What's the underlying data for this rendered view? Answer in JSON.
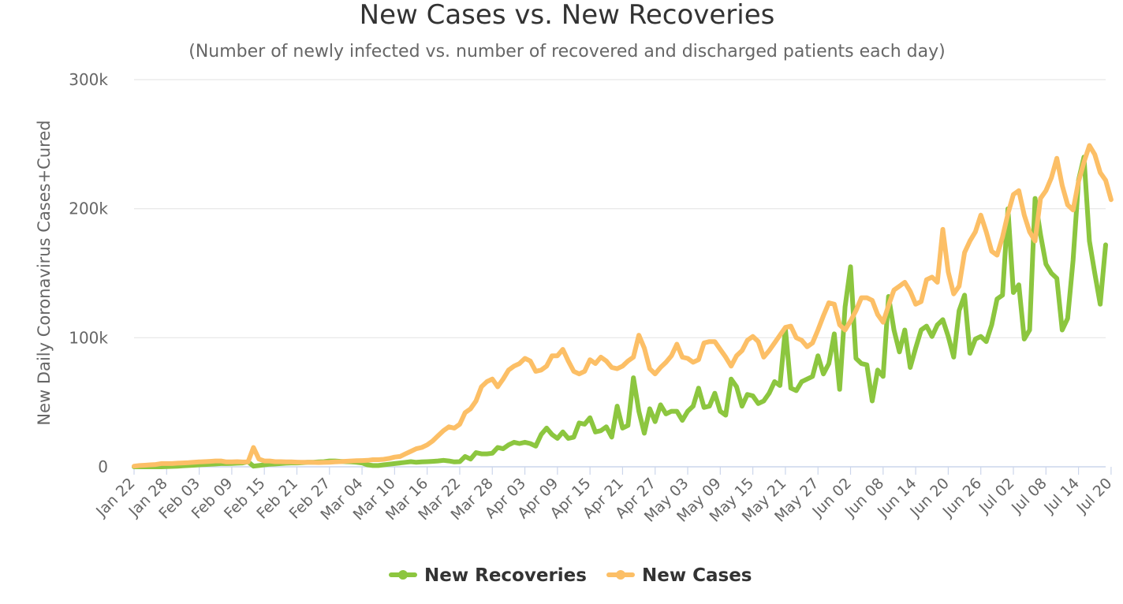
{
  "chart_data": {
    "type": "line",
    "title": "New Cases vs. New Recoveries",
    "subtitle": "(Number of newly infected vs. number of recovered and discharged patients each day)",
    "ylabel": "New Daily Coronavirus Cases+Cured",
    "ylim": [
      0,
      300000
    ],
    "yticks": [
      {
        "value": 0,
        "label": "0"
      },
      {
        "value": 100000,
        "label": "100k"
      },
      {
        "value": 200000,
        "label": "200k"
      },
      {
        "value": 300000,
        "label": "300k"
      }
    ],
    "grid": true,
    "legend_position": "bottom-center",
    "x_tick_labels": [
      "Jan 22",
      "Jan 28",
      "Feb 03",
      "Feb 09",
      "Feb 15",
      "Feb 21",
      "Feb 27",
      "Mar 04",
      "Mar 10",
      "Mar 16",
      "Mar 22",
      "Mar 28",
      "Apr 03",
      "Apr 09",
      "Apr 15",
      "Apr 21",
      "Apr 27",
      "May 03",
      "May 09",
      "May 15",
      "May 21",
      "May 27",
      "Jun 02",
      "Jun 08",
      "Jun 14",
      "Jun 20",
      "Jun 26",
      "Jul 02",
      "Jul 08",
      "Jul 14",
      "Jul 20"
    ],
    "tick_every_days": 6,
    "series": [
      {
        "name": "New Recoveries",
        "color": "#8cc63f",
        "values": [
          0,
          0,
          0,
          0,
          0,
          0,
          200,
          300,
          500,
          800,
          1000,
          1200,
          1500,
          1800,
          2000,
          2200,
          2500,
          2500,
          2600,
          2800,
          3000,
          4000,
          500,
          1000,
          1500,
          2000,
          2200,
          2500,
          2800,
          3000,
          3000,
          3200,
          3500,
          3500,
          3800,
          4000,
          4500,
          4500,
          4200,
          4000,
          3800,
          3500,
          3000,
          1500,
          1000,
          1000,
          1500,
          2000,
          2500,
          3000,
          3500,
          4000,
          3500,
          3800,
          4000,
          4200,
          4500,
          5000,
          4500,
          3800,
          4000,
          8000,
          6000,
          11000,
          10000,
          10000,
          10500,
          15000,
          14000,
          17000,
          19000,
          18000,
          19000,
          18000,
          16000,
          25000,
          30000,
          25000,
          22000,
          27000,
          22000,
          23000,
          34000,
          33000,
          38000,
          27000,
          28000,
          31000,
          23000,
          47000,
          30000,
          32000,
          69000,
          43000,
          26000,
          45000,
          35000,
          48000,
          41000,
          43000,
          43000,
          36000,
          43000,
          47000,
          61000,
          46000,
          47000,
          57000,
          43000,
          40000,
          68000,
          62000,
          47000,
          56000,
          55000,
          49000,
          51000,
          57000,
          66000,
          63000,
          107000,
          61000,
          59000,
          66000,
          68000,
          70000,
          86000,
          72000,
          80000,
          103000,
          60000,
          124000,
          155000,
          84000,
          80000,
          79000,
          51000,
          75000,
          70000,
          132000,
          106000,
          89000,
          106000,
          77000,
          92000,
          106000,
          109000,
          101000,
          110000,
          114000,
          101000,
          85000,
          121000,
          133000,
          88000,
          99000,
          101000,
          97000,
          110000,
          130000,
          133000,
          200000,
          135000,
          141000,
          99000,
          106000,
          208000,
          180000,
          157000,
          150000,
          146000,
          106000,
          115000,
          160000,
          222000,
          240000,
          175000,
          150000,
          126000,
          172000
        ]
      },
      {
        "name": "New Cases",
        "color": "#fcbf66",
        "values": [
          500,
          1000,
          1200,
          1500,
          1800,
          2500,
          2500,
          2500,
          2800,
          3000,
          3200,
          3500,
          3800,
          4000,
          4200,
          4500,
          4500,
          3800,
          3800,
          4000,
          3700,
          3800,
          15000,
          6000,
          4500,
          4500,
          4000,
          4000,
          3800,
          3800,
          3600,
          3500,
          3500,
          3400,
          3300,
          3400,
          3500,
          3800,
          4000,
          4300,
          4500,
          4700,
          4800,
          5000,
          5500,
          5500,
          5800,
          6500,
          7500,
          8000,
          10000,
          12000,
          14000,
          15000,
          17000,
          20000,
          24000,
          28000,
          31000,
          30000,
          33000,
          42000,
          45000,
          51000,
          62000,
          66000,
          68000,
          62000,
          68000,
          75000,
          78000,
          80000,
          84000,
          82000,
          74000,
          75000,
          78000,
          86000,
          86000,
          91000,
          82000,
          74000,
          72000,
          74000,
          83000,
          80000,
          85000,
          82000,
          77000,
          76000,
          78000,
          82000,
          85000,
          102000,
          92000,
          76000,
          72000,
          77000,
          81000,
          86000,
          95000,
          85000,
          84000,
          81000,
          83000,
          96000,
          97000,
          97000,
          91000,
          85000,
          78000,
          86000,
          90000,
          98000,
          101000,
          97000,
          85000,
          90000,
          96000,
          102000,
          108000,
          109000,
          100000,
          98000,
          93000,
          96000,
          106000,
          117000,
          127000,
          126000,
          110000,
          106000,
          113000,
          121000,
          131000,
          131000,
          129000,
          118000,
          112000,
          125000,
          137000,
          140000,
          143000,
          136000,
          126000,
          128000,
          145000,
          147000,
          143000,
          184000,
          151000,
          134000,
          140000,
          166000,
          175000,
          182000,
          195000,
          182000,
          167000,
          164000,
          178000,
          196000,
          211000,
          214000,
          195000,
          182000,
          175000,
          208000,
          214000,
          224000,
          239000,
          218000,
          203000,
          199000,
          221000,
          236000,
          249000,
          242000,
          228000,
          222000,
          207000
        ]
      }
    ]
  }
}
